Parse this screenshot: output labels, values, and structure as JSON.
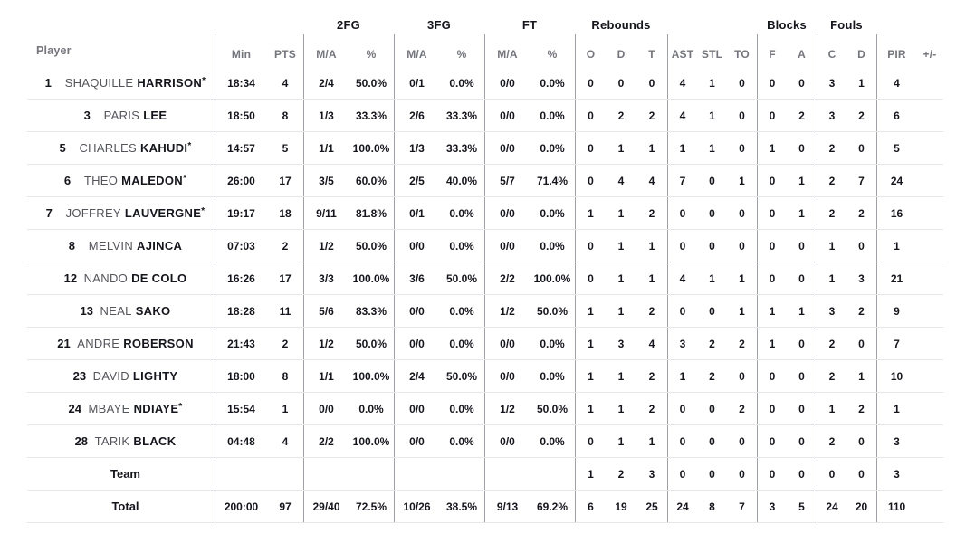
{
  "colors": {
    "background": "#ffffff",
    "text_primary": "#15151d",
    "text_muted": "#75757e",
    "column_divider": "#a0a0a8",
    "row_separator": "#e7e7ea"
  },
  "table": {
    "player_header": "Player",
    "starter_marker": "*",
    "group_headers": [
      "2FG",
      "3FG",
      "FT",
      "Rebounds",
      "Blocks",
      "Fouls"
    ],
    "sub_columns": [
      "Min",
      "PTS",
      "M/A",
      "%",
      "M/A",
      "%",
      "M/A",
      "%",
      "O",
      "D",
      "T",
      "AST",
      "STL",
      "TO",
      "F",
      "A",
      "C",
      "D",
      "PIR",
      "+/-"
    ],
    "rows": [
      {
        "num": "1",
        "first": "SHAQUILLE",
        "last": "HARRISON",
        "starter": true,
        "min": "18:34",
        "pts": "4",
        "fg2_ma": "2/4",
        "fg2_pct": "50.0%",
        "fg3_ma": "0/1",
        "fg3_pct": "0.0%",
        "ft_ma": "0/0",
        "ft_pct": "0.0%",
        "reb_o": "0",
        "reb_d": "0",
        "reb_t": "0",
        "ast": "4",
        "stl": "1",
        "to": "0",
        "blk_f": "0",
        "blk_a": "0",
        "foul_c": "3",
        "foul_d": "1",
        "pir": "4",
        "pm": ""
      },
      {
        "num": "3",
        "first": "PARIS",
        "last": "LEE",
        "starter": false,
        "min": "18:50",
        "pts": "8",
        "fg2_ma": "1/3",
        "fg2_pct": "33.3%",
        "fg3_ma": "2/6",
        "fg3_pct": "33.3%",
        "ft_ma": "0/0",
        "ft_pct": "0.0%",
        "reb_o": "0",
        "reb_d": "2",
        "reb_t": "2",
        "ast": "4",
        "stl": "1",
        "to": "0",
        "blk_f": "0",
        "blk_a": "2",
        "foul_c": "3",
        "foul_d": "2",
        "pir": "6",
        "pm": ""
      },
      {
        "num": "5",
        "first": "CHARLES",
        "last": "KAHUDI",
        "starter": true,
        "min": "14:57",
        "pts": "5",
        "fg2_ma": "1/1",
        "fg2_pct": "100.0%",
        "fg3_ma": "1/3",
        "fg3_pct": "33.3%",
        "ft_ma": "0/0",
        "ft_pct": "0.0%",
        "reb_o": "0",
        "reb_d": "1",
        "reb_t": "1",
        "ast": "1",
        "stl": "1",
        "to": "0",
        "blk_f": "1",
        "blk_a": "0",
        "foul_c": "2",
        "foul_d": "0",
        "pir": "5",
        "pm": ""
      },
      {
        "num": "6",
        "first": "THEO",
        "last": "MALEDON",
        "starter": true,
        "min": "26:00",
        "pts": "17",
        "fg2_ma": "3/5",
        "fg2_pct": "60.0%",
        "fg3_ma": "2/5",
        "fg3_pct": "40.0%",
        "ft_ma": "5/7",
        "ft_pct": "71.4%",
        "reb_o": "0",
        "reb_d": "4",
        "reb_t": "4",
        "ast": "7",
        "stl": "0",
        "to": "1",
        "blk_f": "0",
        "blk_a": "1",
        "foul_c": "2",
        "foul_d": "7",
        "pir": "24",
        "pm": ""
      },
      {
        "num": "7",
        "first": "JOFFREY",
        "last": "LAUVERGNE",
        "starter": true,
        "min": "19:17",
        "pts": "18",
        "fg2_ma": "9/11",
        "fg2_pct": "81.8%",
        "fg3_ma": "0/1",
        "fg3_pct": "0.0%",
        "ft_ma": "0/0",
        "ft_pct": "0.0%",
        "reb_o": "1",
        "reb_d": "1",
        "reb_t": "2",
        "ast": "0",
        "stl": "0",
        "to": "0",
        "blk_f": "0",
        "blk_a": "1",
        "foul_c": "2",
        "foul_d": "2",
        "pir": "16",
        "pm": ""
      },
      {
        "num": "8",
        "first": "MELVIN",
        "last": "AJINCA",
        "starter": false,
        "min": "07:03",
        "pts": "2",
        "fg2_ma": "1/2",
        "fg2_pct": "50.0%",
        "fg3_ma": "0/0",
        "fg3_pct": "0.0%",
        "ft_ma": "0/0",
        "ft_pct": "0.0%",
        "reb_o": "0",
        "reb_d": "1",
        "reb_t": "1",
        "ast": "0",
        "stl": "0",
        "to": "0",
        "blk_f": "0",
        "blk_a": "0",
        "foul_c": "1",
        "foul_d": "0",
        "pir": "1",
        "pm": ""
      },
      {
        "num": "12",
        "first": "NANDO",
        "last": "DE COLO",
        "starter": false,
        "min": "16:26",
        "pts": "17",
        "fg2_ma": "3/3",
        "fg2_pct": "100.0%",
        "fg3_ma": "3/6",
        "fg3_pct": "50.0%",
        "ft_ma": "2/2",
        "ft_pct": "100.0%",
        "reb_o": "0",
        "reb_d": "1",
        "reb_t": "1",
        "ast": "4",
        "stl": "1",
        "to": "1",
        "blk_f": "0",
        "blk_a": "0",
        "foul_c": "1",
        "foul_d": "3",
        "pir": "21",
        "pm": ""
      },
      {
        "num": "13",
        "first": "NEAL",
        "last": "SAKO",
        "starter": false,
        "min": "18:28",
        "pts": "11",
        "fg2_ma": "5/6",
        "fg2_pct": "83.3%",
        "fg3_ma": "0/0",
        "fg3_pct": "0.0%",
        "ft_ma": "1/2",
        "ft_pct": "50.0%",
        "reb_o": "1",
        "reb_d": "1",
        "reb_t": "2",
        "ast": "0",
        "stl": "0",
        "to": "1",
        "blk_f": "1",
        "blk_a": "1",
        "foul_c": "3",
        "foul_d": "2",
        "pir": "9",
        "pm": ""
      },
      {
        "num": "21",
        "first": "ANDRE",
        "last": "ROBERSON",
        "starter": false,
        "min": "21:43",
        "pts": "2",
        "fg2_ma": "1/2",
        "fg2_pct": "50.0%",
        "fg3_ma": "0/0",
        "fg3_pct": "0.0%",
        "ft_ma": "0/0",
        "ft_pct": "0.0%",
        "reb_o": "1",
        "reb_d": "3",
        "reb_t": "4",
        "ast": "3",
        "stl": "2",
        "to": "2",
        "blk_f": "1",
        "blk_a": "0",
        "foul_c": "2",
        "foul_d": "0",
        "pir": "7",
        "pm": ""
      },
      {
        "num": "23",
        "first": "DAVID",
        "last": "LIGHTY",
        "starter": false,
        "min": "18:00",
        "pts": "8",
        "fg2_ma": "1/1",
        "fg2_pct": "100.0%",
        "fg3_ma": "2/4",
        "fg3_pct": "50.0%",
        "ft_ma": "0/0",
        "ft_pct": "0.0%",
        "reb_o": "1",
        "reb_d": "1",
        "reb_t": "2",
        "ast": "1",
        "stl": "2",
        "to": "0",
        "blk_f": "0",
        "blk_a": "0",
        "foul_c": "2",
        "foul_d": "1",
        "pir": "10",
        "pm": ""
      },
      {
        "num": "24",
        "first": "MBAYE",
        "last": "NDIAYE",
        "starter": true,
        "min": "15:54",
        "pts": "1",
        "fg2_ma": "0/0",
        "fg2_pct": "0.0%",
        "fg3_ma": "0/0",
        "fg3_pct": "0.0%",
        "ft_ma": "1/2",
        "ft_pct": "50.0%",
        "reb_o": "1",
        "reb_d": "1",
        "reb_t": "2",
        "ast": "0",
        "stl": "0",
        "to": "2",
        "blk_f": "0",
        "blk_a": "0",
        "foul_c": "1",
        "foul_d": "2",
        "pir": "1",
        "pm": ""
      },
      {
        "num": "28",
        "first": "TARIK",
        "last": "BLACK",
        "starter": false,
        "min": "04:48",
        "pts": "4",
        "fg2_ma": "2/2",
        "fg2_pct": "100.0%",
        "fg3_ma": "0/0",
        "fg3_pct": "0.0%",
        "ft_ma": "0/0",
        "ft_pct": "0.0%",
        "reb_o": "0",
        "reb_d": "1",
        "reb_t": "1",
        "ast": "0",
        "stl": "0",
        "to": "0",
        "blk_f": "0",
        "blk_a": "0",
        "foul_c": "2",
        "foul_d": "0",
        "pir": "3",
        "pm": ""
      },
      {
        "label": "Team",
        "min": "",
        "pts": "",
        "fg2_ma": "",
        "fg2_pct": "",
        "fg3_ma": "",
        "fg3_pct": "",
        "ft_ma": "",
        "ft_pct": "",
        "reb_o": "1",
        "reb_d": "2",
        "reb_t": "3",
        "ast": "0",
        "stl": "0",
        "to": "0",
        "blk_f": "0",
        "blk_a": "0",
        "foul_c": "0",
        "foul_d": "0",
        "pir": "3",
        "pm": ""
      },
      {
        "label": "Total",
        "min": "200:00",
        "pts": "97",
        "fg2_ma": "29/40",
        "fg2_pct": "72.5%",
        "fg3_ma": "10/26",
        "fg3_pct": "38.5%",
        "ft_ma": "9/13",
        "ft_pct": "69.2%",
        "reb_o": "6",
        "reb_d": "19",
        "reb_t": "25",
        "ast": "24",
        "stl": "8",
        "to": "7",
        "blk_f": "3",
        "blk_a": "5",
        "foul_c": "24",
        "foul_d": "20",
        "pir": "110",
        "pm": ""
      }
    ]
  }
}
